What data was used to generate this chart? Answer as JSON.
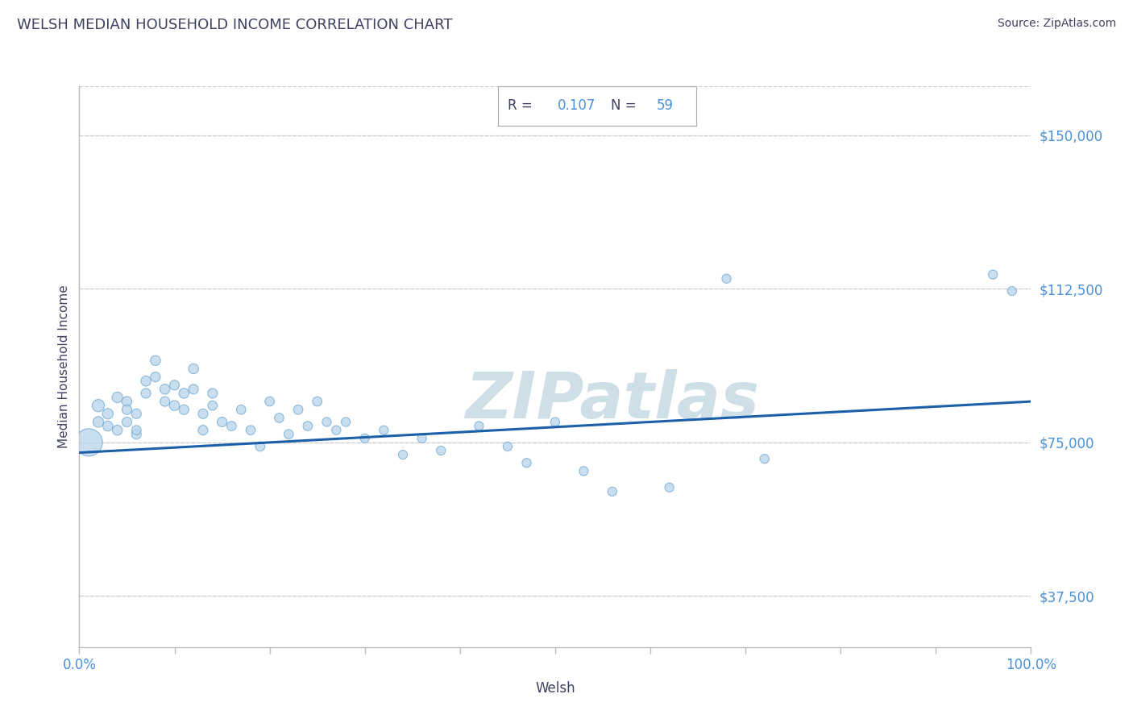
{
  "title": "WELSH MEDIAN HOUSEHOLD INCOME CORRELATION CHART",
  "source": "Source: ZipAtlas.com",
  "xlabel": "Welsh",
  "ylabel": "Median Household Income",
  "R": 0.107,
  "N": 59,
  "xlim": [
    0,
    1.0
  ],
  "ylim": [
    25000,
    162000
  ],
  "yticks": [
    37500,
    75000,
    112500,
    150000
  ],
  "ytick_labels": [
    "$37,500",
    "$75,000",
    "$112,500",
    "$150,000"
  ],
  "xtick_labels": [
    "0.0%",
    "100.0%"
  ],
  "background_color": "#ffffff",
  "scatter_color": "#b8d4ea",
  "scatter_edge_color": "#6fa8d0",
  "line_color": "#1a5fa8",
  "watermark_color": "#cfdfe8",
  "title_color": "#404060",
  "axis_color": "#bbbbbb",
  "label_color": "#4a90d9",
  "grid_color": "#cccccc",
  "scatter_x": [
    0.01,
    0.02,
    0.02,
    0.03,
    0.03,
    0.04,
    0.04,
    0.05,
    0.05,
    0.05,
    0.06,
    0.06,
    0.06,
    0.07,
    0.07,
    0.08,
    0.08,
    0.09,
    0.09,
    0.1,
    0.1,
    0.11,
    0.11,
    0.12,
    0.12,
    0.13,
    0.13,
    0.14,
    0.14,
    0.15,
    0.16,
    0.17,
    0.18,
    0.19,
    0.2,
    0.21,
    0.22,
    0.23,
    0.24,
    0.25,
    0.26,
    0.27,
    0.28,
    0.3,
    0.32,
    0.34,
    0.36,
    0.38,
    0.42,
    0.45,
    0.47,
    0.5,
    0.53,
    0.56,
    0.62,
    0.68,
    0.72,
    0.96,
    0.98
  ],
  "scatter_y": [
    75000,
    84000,
    80000,
    82000,
    79000,
    86000,
    78000,
    85000,
    80000,
    83000,
    77000,
    82000,
    78000,
    90000,
    87000,
    95000,
    91000,
    88000,
    85000,
    84000,
    89000,
    87000,
    83000,
    93000,
    88000,
    82000,
    78000,
    87000,
    84000,
    80000,
    79000,
    83000,
    78000,
    74000,
    85000,
    81000,
    77000,
    83000,
    79000,
    85000,
    80000,
    78000,
    80000,
    76000,
    78000,
    72000,
    76000,
    73000,
    79000,
    74000,
    70000,
    80000,
    68000,
    63000,
    64000,
    115000,
    71000,
    116000,
    112000
  ],
  "scatter_sizes": [
    600,
    120,
    90,
    90,
    80,
    90,
    80,
    80,
    75,
    75,
    75,
    75,
    70,
    80,
    75,
    80,
    75,
    80,
    75,
    80,
    75,
    80,
    75,
    80,
    75,
    75,
    75,
    75,
    70,
    75,
    70,
    70,
    70,
    70,
    70,
    70,
    70,
    70,
    70,
    70,
    65,
    65,
    65,
    65,
    65,
    65,
    65,
    65,
    65,
    65,
    65,
    65,
    65,
    65,
    65,
    65,
    65,
    65,
    65
  ],
  "line_x": [
    0.0,
    1.0
  ],
  "line_y": [
    72500,
    85000
  ]
}
